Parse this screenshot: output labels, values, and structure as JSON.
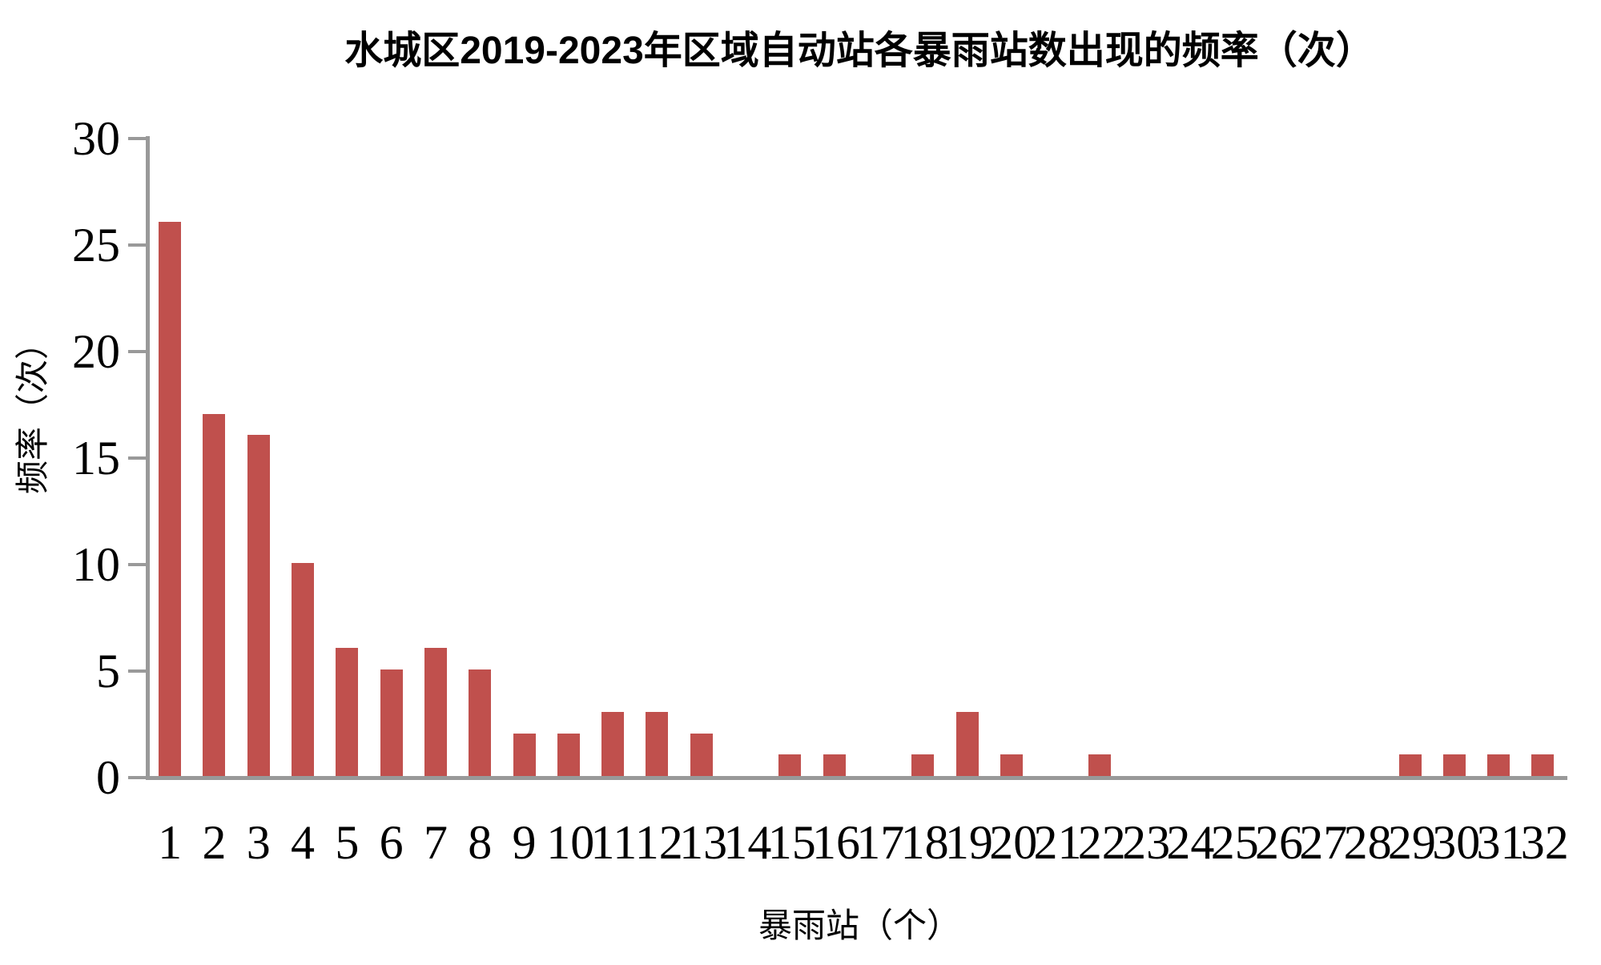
{
  "chart": {
    "title": "水城区2019-2023年区域自动站各暴雨站数出现的频率（次）",
    "ylabel": "频率（次）",
    "xlabel": "暴雨站（个）"
  },
  "chart_data": {
    "type": "bar",
    "title": "水城区2019-2023年区域自动站各暴雨站数出现的频率（次）",
    "xlabel": "暴雨站（个）",
    "ylabel": "频率（次）",
    "categories": [
      1,
      2,
      3,
      4,
      5,
      6,
      7,
      8,
      9,
      10,
      11,
      12,
      13,
      14,
      15,
      16,
      17,
      18,
      19,
      20,
      21,
      22,
      23,
      24,
      25,
      26,
      27,
      28,
      29,
      30,
      31,
      32
    ],
    "values": [
      26,
      17,
      16,
      10,
      6,
      5,
      6,
      5,
      2,
      2,
      3,
      3,
      2,
      0,
      1,
      1,
      0,
      1,
      3,
      1,
      0,
      1,
      0,
      0,
      0,
      0,
      0,
      0,
      1,
      1,
      1,
      1
    ],
    "ylim": [
      0,
      30
    ],
    "yticks": [
      0,
      5,
      10,
      15,
      20,
      25,
      30
    ],
    "grid": false,
    "legend": null,
    "bar_color": "#C0504D",
    "axis_color": "#999999",
    "text_color": "#000000"
  }
}
